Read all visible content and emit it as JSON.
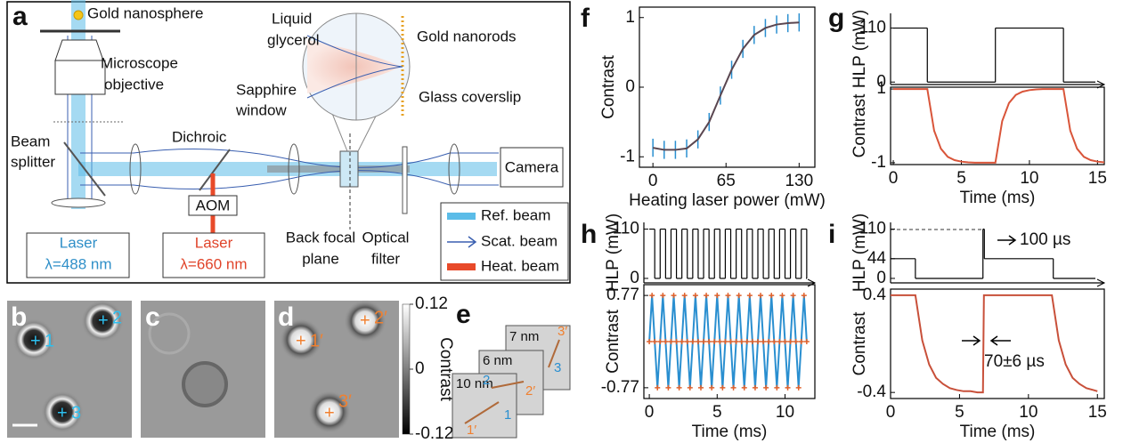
{
  "diagram": {
    "label": "a",
    "gold_nanosphere": "Gold nanosphere",
    "microscope": [
      "Microscope",
      "objective"
    ],
    "liquid_glycerol": [
      "Liquid",
      "glycerol"
    ],
    "gold_nanorods": "Gold nanorods",
    "sapphire_window": [
      "Sapphire",
      "window"
    ],
    "glass_coverslip": "Glass coverslip",
    "beam_splitter": [
      "Beam",
      "splitter"
    ],
    "dichroic": "Dichroic",
    "aom": "AOM",
    "laser_blue": [
      "Laser",
      "λ=488 nm"
    ],
    "laser_red": [
      "Laser",
      "λ=660 nm"
    ],
    "back_focal_plane": [
      "Back focal",
      "plane"
    ],
    "optical_filter": [
      "Optical",
      "filter"
    ],
    "camera": "Camera",
    "legend": [
      "Ref. beam",
      "Scat. beam",
      "Heat. beam"
    ]
  },
  "images": [
    {
      "label": "b",
      "marks": [
        "1",
        "2",
        "3"
      ]
    },
    {
      "label": "c"
    },
    {
      "label": "d",
      "marks": [
        "1′",
        "2′",
        "3′"
      ]
    }
  ],
  "colorbar": {
    "label": "Contrast",
    "lim": [
      -0.12,
      0.12
    ],
    "ticks": [
      0.12,
      0,
      -0.12
    ]
  },
  "drift": {
    "label": "e",
    "steps": [
      "7 nm",
      "6 nm",
      "10 nm"
    ],
    "points": [
      "3",
      "2",
      "1",
      "3′",
      "2′",
      "1′"
    ]
  },
  "chart_data": [
    {
      "type": "line",
      "label": "f",
      "x": [
        0,
        10,
        20,
        30,
        40,
        50,
        60,
        70,
        80,
        90,
        100,
        110,
        120,
        130
      ],
      "values": [
        -0.87,
        -0.9,
        -0.9,
        -0.88,
        -0.75,
        -0.5,
        -0.12,
        0.25,
        0.55,
        0.75,
        0.85,
        0.9,
        0.92,
        0.93
      ],
      "errors": [
        0.13,
        0.13,
        0.13,
        0.13,
        0.13,
        0.13,
        0.13,
        0.13,
        0.13,
        0.13,
        0.13,
        0.13,
        0.13,
        0.13
      ],
      "color": "#5a4650",
      "error_color": "#2a8fd0",
      "xlim": [
        -12,
        144
      ],
      "ylim": [
        -1.15,
        1.15
      ],
      "xticks": [
        0,
        65,
        130
      ],
      "yticks": [
        -1,
        0,
        1
      ],
      "xlabel": "Heating laser power (mW)",
      "ylabel": "Contrast"
    },
    {
      "type": "step",
      "label": "g",
      "x": [
        0,
        2.5,
        7.5,
        12.5
      ],
      "values": [
        110,
        0,
        110,
        0
      ],
      "color": "#000000",
      "xlim": [
        -0.2,
        15.5
      ],
      "ylim": [
        -5,
        140
      ],
      "yticks": [
        0,
        110
      ],
      "ylabel": "HLP (mW)"
    },
    {
      "type": "line",
      "x": [
        0,
        0.5,
        1,
        1.5,
        2,
        2.5,
        3,
        3.5,
        4,
        4.5,
        5,
        5.5,
        6,
        6.5,
        7,
        7.5,
        8,
        8.5,
        9,
        9.5,
        10,
        10.5,
        11,
        11.5,
        12,
        12.5,
        13,
        13.5,
        14,
        14.5,
        15,
        15.5
      ],
      "values": [
        1,
        1,
        1,
        1,
        1,
        1,
        -0.13,
        -0.62,
        -0.84,
        -0.93,
        -0.97,
        -0.99,
        -1,
        -1,
        -1,
        -1,
        0.13,
        0.62,
        0.84,
        0.93,
        0.97,
        0.99,
        1,
        1,
        1,
        1,
        -0.13,
        -0.62,
        -0.84,
        -0.93,
        -0.97,
        -0.99
      ],
      "color": "#d9553a",
      "xlim": [
        -0.2,
        15.5
      ],
      "ylim": [
        -1.05,
        1.05
      ],
      "xticks": [
        0,
        5,
        10,
        15
      ],
      "yticks": [
        -1,
        1
      ],
      "xlabel": "Time (ms)",
      "ylabel": "Contrast"
    },
    {
      "type": "step",
      "label": "h",
      "x": [
        0,
        0.4,
        0.8,
        1.2,
        1.6,
        2,
        2.4,
        2.8,
        3.2,
        3.6,
        4,
        4.4,
        4.8,
        5.2,
        5.6,
        6,
        6.4,
        6.8,
        7.2,
        7.6,
        8,
        8.4,
        8.8,
        9.2,
        9.6,
        10,
        10.4,
        10.8,
        11.2,
        11.6
      ],
      "values": [
        110,
        0,
        110,
        0,
        110,
        0,
        110,
        0,
        110,
        0,
        110,
        0,
        110,
        0,
        110,
        0,
        110,
        0,
        110,
        0,
        110,
        0,
        110,
        0,
        110,
        0,
        110,
        0,
        110,
        0
      ],
      "color": "#000000",
      "xlim": [
        -0.4,
        12.2
      ],
      "ylim": [
        -10,
        125
      ],
      "yticks": [
        0,
        110
      ],
      "ylabel": "HLP (mW)"
    },
    {
      "type": "line",
      "x": [
        0,
        0.2,
        0.4,
        0.6,
        0.8,
        1,
        1.2,
        1.4,
        1.6,
        1.8,
        2,
        2.2,
        2.4,
        2.6,
        2.8,
        3,
        3.2,
        3.4,
        3.6,
        3.8,
        4,
        4.2,
        4.4,
        4.6,
        4.8,
        5,
        5.2,
        5.4,
        5.6,
        5.8,
        6,
        6.2,
        6.4,
        6.6,
        6.8,
        7,
        7.2,
        7.4,
        7.6,
        7.8,
        8,
        8.2,
        8.4,
        8.6,
        8.8,
        9,
        9.2,
        9.4,
        9.6,
        9.8,
        10,
        10.2,
        10.4,
        10.6,
        10.8,
        11,
        11.2,
        11.4,
        11.6
      ],
      "values": [
        0,
        0.77,
        0,
        -0.77,
        0,
        0.77,
        0,
        -0.77,
        0,
        0.77,
        0,
        -0.77,
        0,
        0.77,
        0,
        -0.77,
        0,
        0.77,
        0,
        -0.77,
        0,
        0.77,
        0,
        -0.77,
        0,
        0.77,
        0,
        -0.77,
        0,
        0.77,
        0,
        -0.77,
        0,
        0.77,
        0,
        -0.77,
        0,
        0.77,
        0,
        -0.77,
        0,
        0.77,
        0,
        -0.77,
        0,
        0.77,
        0,
        -0.77,
        0,
        0.77,
        0,
        -0.77,
        0,
        0.77,
        0,
        -0.77,
        0,
        0.77,
        0
      ],
      "color": "#2a8fd0",
      "marker_color": "#e0602a",
      "xlim": [
        -0.4,
        12.2
      ],
      "ylim": [
        -0.95,
        0.95
      ],
      "xticks": [
        0,
        5,
        10
      ],
      "yticks": [
        -0.77,
        0.77
      ],
      "xlabel": "Time (ms)",
      "ylabel": "Contrast"
    },
    {
      "type": "step",
      "label": "i",
      "x": [
        0,
        1.8,
        6.7,
        6.8,
        11.8
      ],
      "values": [
        44,
        0,
        110,
        44,
        0
      ],
      "color": "#000000",
      "xlim": [
        0,
        15.5
      ],
      "ylim": [
        -10,
        125
      ],
      "yticks": [
        0,
        44,
        110
      ],
      "ylabel": "HLP (mW)",
      "annotation": "100 µs"
    },
    {
      "type": "line",
      "x": [
        0,
        0.5,
        1,
        1.5,
        1.8,
        2.3,
        2.8,
        3.3,
        3.8,
        4.3,
        4.8,
        5.3,
        5.8,
        6.3,
        6.7,
        6.77,
        7.2,
        7.7,
        8.2,
        8.7,
        9.2,
        9.7,
        10.2,
        10.7,
        11.2,
        11.7,
        12.2,
        12.7,
        13.2,
        13.7,
        14.2,
        14.7,
        15
      ],
      "values": [
        0.4,
        0.4,
        0.4,
        0.4,
        0.4,
        0.028,
        -0.17,
        -0.28,
        -0.33,
        -0.365,
        -0.38,
        -0.39,
        -0.39,
        -0.4,
        -0.4,
        0.4,
        0.4,
        0.4,
        0.4,
        0.4,
        0.4,
        0.4,
        0.4,
        0.4,
        0.4,
        0.4,
        0.028,
        -0.17,
        -0.28,
        -0.33,
        -0.365,
        -0.38,
        -0.39
      ],
      "color": "#c8503a",
      "xlim": [
        0,
        15.5
      ],
      "ylim": [
        -0.45,
        0.45
      ],
      "xticks": [
        0,
        5,
        10,
        15
      ],
      "yticks": [
        -0.4,
        0.4
      ],
      "xlabel": "Time (ms)",
      "ylabel": "Contrast",
      "annotation": "70±6 µs"
    }
  ]
}
